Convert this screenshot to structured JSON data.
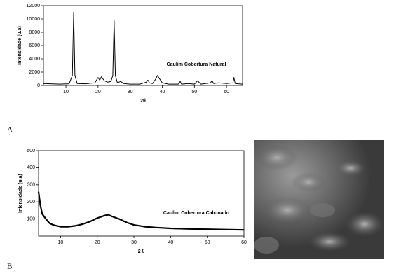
{
  "chart_data": [
    {
      "type": "line",
      "panel": "A",
      "x_label": "2θ",
      "y_label": "Intensidade (u.a)",
      "annotation": "Caulim Cobertura Natural",
      "color": "#000000",
      "xlim": [
        3,
        65
      ],
      "ylim": [
        0,
        12000
      ],
      "xticks": [
        10,
        20,
        30,
        40,
        50,
        60
      ],
      "yticks": [
        0,
        2000,
        4000,
        6000,
        8000,
        10000,
        12000
      ],
      "x": [
        3,
        5,
        8,
        11,
        12,
        12.4,
        12.8,
        13.5,
        16,
        19,
        20,
        20.5,
        21,
        22,
        23,
        24,
        24.6,
        25,
        25.4,
        26,
        27,
        28,
        30,
        33,
        35,
        35.5,
        36,
        37,
        38,
        38.5,
        39.3,
        40,
        42,
        45,
        45.6,
        46,
        48,
        50,
        51,
        52,
        55,
        55.5,
        56,
        57.5,
        60,
        62,
        62.3,
        62.7,
        65
      ],
      "values": [
        300,
        250,
        200,
        250,
        1500,
        11000,
        1500,
        300,
        250,
        400,
        1200,
        800,
        1300,
        700,
        500,
        600,
        1500,
        9800,
        1500,
        400,
        600,
        300,
        200,
        200,
        500,
        800,
        400,
        300,
        1000,
        1500,
        900,
        400,
        200,
        200,
        600,
        200,
        300,
        200,
        700,
        200,
        400,
        700,
        300,
        400,
        300,
        400,
        1200,
        300,
        200
      ]
    },
    {
      "type": "line",
      "panel": "B",
      "x_label": "2 θ",
      "y_label": "Intensidade (u.a)",
      "annotation": "Caulim Cobertura Calcinado",
      "color": "#000000",
      "xlim": [
        4,
        60
      ],
      "ylim": [
        0,
        500
      ],
      "xticks": [
        10,
        20,
        30,
        40,
        50,
        60
      ],
      "yticks": [
        100,
        200,
        300,
        400,
        500
      ],
      "x": [
        4,
        4.5,
        5,
        6,
        7,
        8,
        9,
        10,
        12,
        14,
        16,
        18,
        20,
        22,
        23,
        24,
        26,
        28,
        30,
        33,
        36,
        40,
        45,
        50,
        55,
        60
      ],
      "values": [
        260,
        180,
        130,
        100,
        75,
        65,
        60,
        55,
        55,
        60,
        70,
        85,
        105,
        120,
        125,
        115,
        100,
        80,
        65,
        55,
        50,
        45,
        42,
        40,
        38,
        36
      ]
    }
  ]
}
